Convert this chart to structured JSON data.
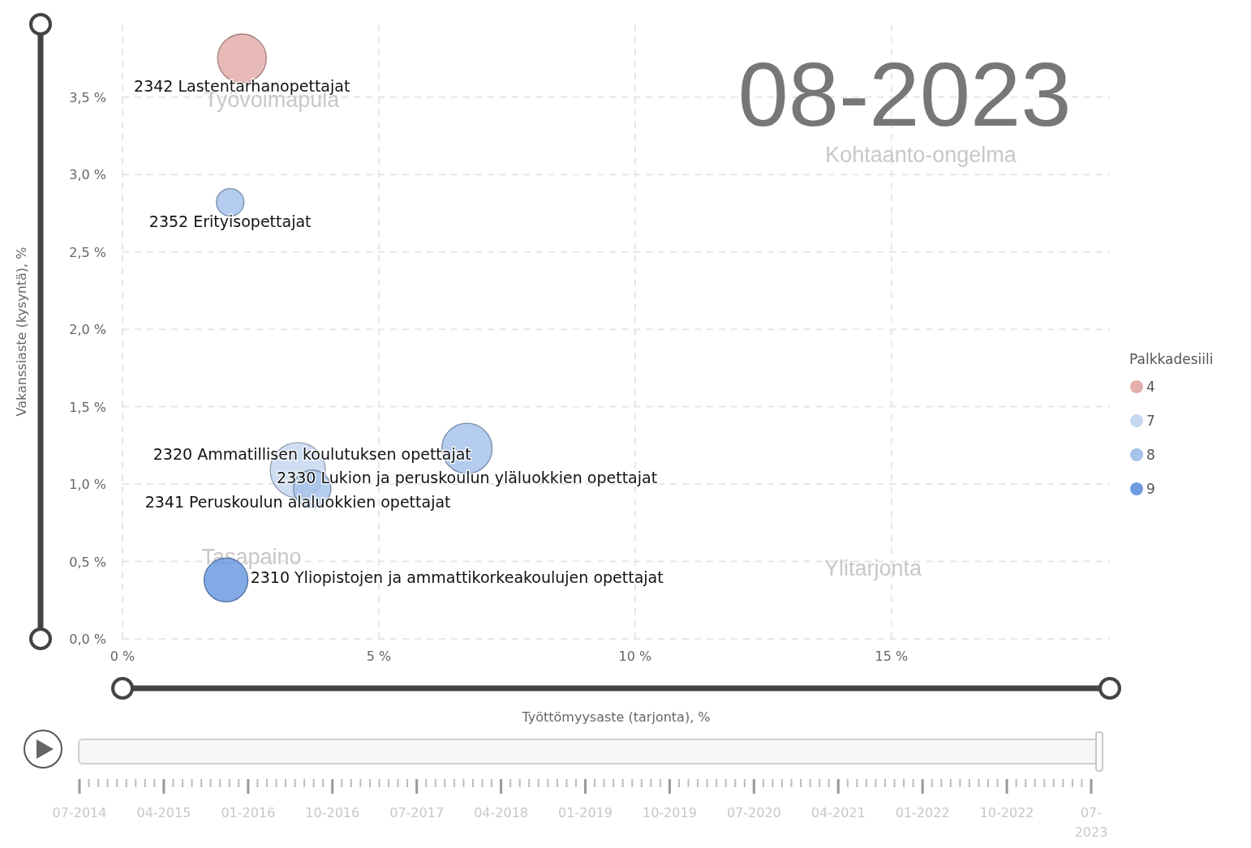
{
  "chart_data": {
    "type": "bubble",
    "xlabel": "Työttömyysaste (tarjonta), %",
    "ylabel": "Vakanssiaste (kysyntä), %",
    "legend_title": "Palkkadesiili",
    "legend": "right",
    "grid": true,
    "xlim": [
      0,
      19.26
    ],
    "ylim": [
      0,
      3.97
    ],
    "xticks": [
      {
        "value": 0,
        "label": "0 %"
      },
      {
        "value": 5,
        "label": "5 %"
      },
      {
        "value": 10,
        "label": "10 %"
      },
      {
        "value": 15,
        "label": "15 %"
      }
    ],
    "yticks": [
      {
        "value": 0,
        "label": "0,0 %"
      },
      {
        "value": 0.5,
        "label": "0,5 %"
      },
      {
        "value": 1,
        "label": "1,0 %"
      },
      {
        "value": 1.5,
        "label": "1,5 %"
      },
      {
        "value": 2,
        "label": "2,0 %"
      },
      {
        "value": 2.5,
        "label": "2,5 %"
      },
      {
        "value": 3,
        "label": "3,0 %"
      },
      {
        "value": 3.5,
        "label": "3,5 %"
      }
    ],
    "series": [
      {
        "name": "4",
        "color": "#e3aeab",
        "x": [
          2.33
        ],
        "values": [
          3.75
        ],
        "sizes": [
          0.78
        ]
      },
      {
        "name": "7",
        "color": "#c6d7f0",
        "x": [
          3.42
        ],
        "values": [
          1.09
        ],
        "sizes": [
          1
        ]
      },
      {
        "name": "8",
        "color": "#a7c3ea",
        "x": [
          2.1,
          3.7,
          6.72
        ],
        "values": [
          2.82,
          0.97,
          1.23
        ],
        "sizes": [
          0.25,
          0.46,
          0.83
        ]
      },
      {
        "name": "9",
        "color": "#6f9be0",
        "x": [
          2.02
        ],
        "values": [
          0.38
        ],
        "sizes": [
          0.63
        ]
      }
    ],
    "annotations": [
      {
        "text": "2342 Lastentarhanopettajat",
        "x": 2.33,
        "y": 3.75
      },
      {
        "text": "2352 Erityisopettajat",
        "x": 2.1,
        "y": 2.82
      },
      {
        "text": "2320 Ammatillisen koulutuksen opettajat",
        "x": 3.7,
        "y": 0.97
      },
      {
        "text": "2330 Lukion ja peruskoulun yläluokkien opettajat",
        "x": 6.72,
        "y": 1.23
      },
      {
        "text": "2341 Peruskoulun alaluokkien opettajat",
        "x": 3.42,
        "y": 1.09
      },
      {
        "text": "2310 Yliopistojen ja ammattikorkeakoulujen opettajat",
        "x": 2.02,
        "y": 0.38
      },
      "Työvoimapula",
      "Kohtaanto-ongelma",
      "Tasapaino",
      "Ylitarjonta",
      "08-2023",
      "07-2014",
      "04-2015",
      "01-2016",
      "10-2016",
      "07-2017",
      "04-2018",
      "01-2019",
      "10-2019",
      "07-2020",
      "04-2021",
      "01-2022",
      "10-2022",
      "07-2023"
    ]
  }
}
